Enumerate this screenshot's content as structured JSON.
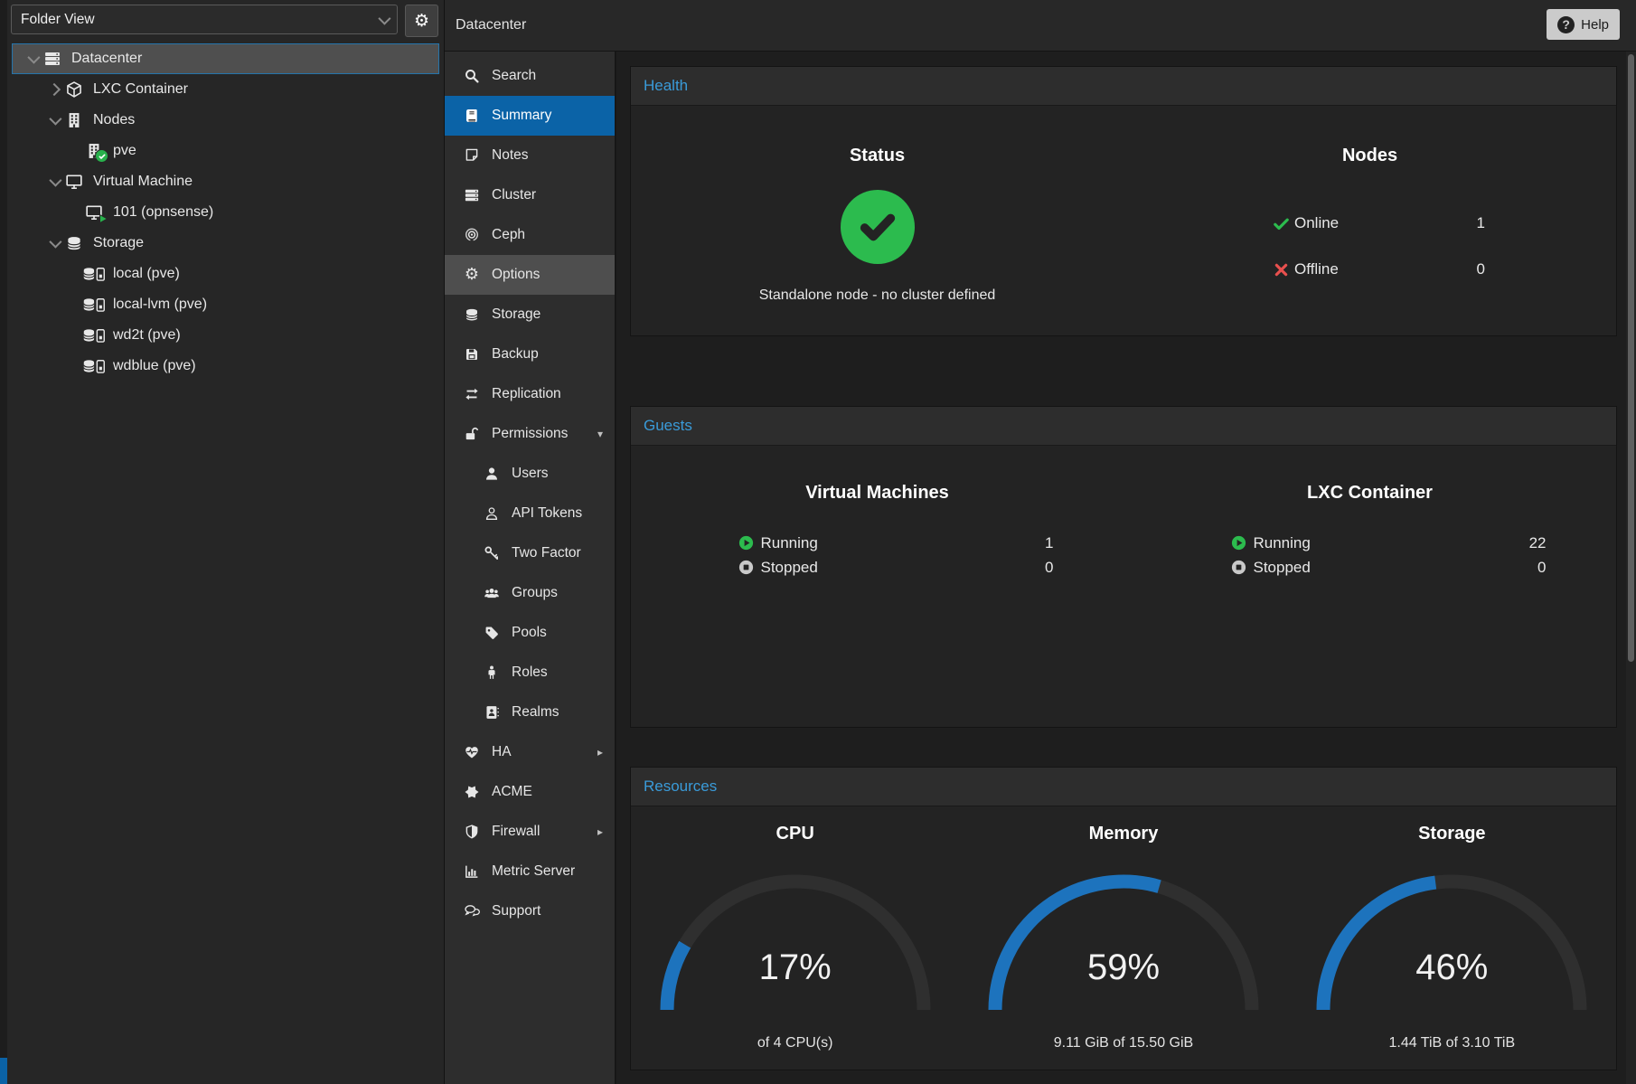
{
  "colors": {
    "selection_blue": "#0b63a7",
    "panel_title_blue": "#3a9bd9",
    "gauge_blue": "#1d73bd",
    "ok_green": "#2cbb4e",
    "error_red": "#e8504e",
    "stopped_gray": "#c9c9c9"
  },
  "left_panel": {
    "view_selector": "Folder View",
    "gear_icon": "gear-icon",
    "tree": [
      {
        "depth": 0,
        "caret": "down",
        "icon": "server-icon",
        "badge": null,
        "label": "Datacenter",
        "selected": true
      },
      {
        "depth": 1,
        "caret": "right",
        "icon": "cube-icon",
        "badge": null,
        "label": "LXC Container",
        "selected": false
      },
      {
        "depth": 1,
        "caret": "down",
        "icon": "building-icon",
        "badge": null,
        "label": "Nodes",
        "selected": false
      },
      {
        "depth": 2,
        "caret": "none",
        "icon": "building-icon",
        "badge": "check",
        "label": "pve",
        "selected": false
      },
      {
        "depth": 1,
        "caret": "down",
        "icon": "monitor-icon",
        "badge": null,
        "label": "Virtual Machine",
        "selected": false
      },
      {
        "depth": 2,
        "caret": "none",
        "icon": "monitor-icon",
        "badge": "play",
        "label": "101 (opnsense)",
        "selected": false
      },
      {
        "depth": 1,
        "caret": "down",
        "icon": "database-icon",
        "badge": null,
        "label": "Storage",
        "selected": false
      },
      {
        "depth": 2,
        "caret": "none",
        "icon": "database-drive-icon",
        "badge": null,
        "label": "local (pve)",
        "selected": false
      },
      {
        "depth": 2,
        "caret": "none",
        "icon": "database-drive-icon",
        "badge": null,
        "label": "local-lvm (pve)",
        "selected": false
      },
      {
        "depth": 2,
        "caret": "none",
        "icon": "database-drive-icon",
        "badge": null,
        "label": "wd2t (pve)",
        "selected": false
      },
      {
        "depth": 2,
        "caret": "none",
        "icon": "database-drive-icon",
        "badge": null,
        "label": "wdblue (pve)",
        "selected": false
      }
    ]
  },
  "top_bar": {
    "breadcrumb": "Datacenter",
    "help_label": "Help",
    "help_icon": "question-circle-icon"
  },
  "menu": {
    "items": [
      {
        "icon": "search-icon",
        "label": "Search",
        "level": 0,
        "state": "normal",
        "arrow": "none"
      },
      {
        "icon": "book-icon",
        "label": "Summary",
        "level": 0,
        "state": "selected",
        "arrow": "none"
      },
      {
        "icon": "note-icon",
        "label": "Notes",
        "level": 0,
        "state": "normal",
        "arrow": "none"
      },
      {
        "icon": "server-icon",
        "label": "Cluster",
        "level": 0,
        "state": "normal",
        "arrow": "none"
      },
      {
        "icon": "ceph-icon",
        "label": "Ceph",
        "level": 0,
        "state": "normal",
        "arrow": "none"
      },
      {
        "icon": "gear-icon",
        "label": "Options",
        "level": 0,
        "state": "hover",
        "arrow": "none"
      },
      {
        "icon": "database-icon",
        "label": "Storage",
        "level": 0,
        "state": "normal",
        "arrow": "none"
      },
      {
        "icon": "floppy-icon",
        "label": "Backup",
        "level": 0,
        "state": "normal",
        "arrow": "none"
      },
      {
        "icon": "exchange-icon",
        "label": "Replication",
        "level": 0,
        "state": "normal",
        "arrow": "none"
      },
      {
        "icon": "lock-open-icon",
        "label": "Permissions",
        "level": 0,
        "state": "normal",
        "arrow": "down"
      },
      {
        "icon": "user-icon",
        "label": "Users",
        "level": 1,
        "state": "normal",
        "arrow": "none"
      },
      {
        "icon": "user-outline-icon",
        "label": "API Tokens",
        "level": 1,
        "state": "normal",
        "arrow": "none"
      },
      {
        "icon": "key-icon",
        "label": "Two Factor",
        "level": 1,
        "state": "normal",
        "arrow": "none"
      },
      {
        "icon": "users-icon",
        "label": "Groups",
        "level": 1,
        "state": "normal",
        "arrow": "none"
      },
      {
        "icon": "tag-icon",
        "label": "Pools",
        "level": 1,
        "state": "normal",
        "arrow": "none"
      },
      {
        "icon": "person-icon",
        "label": "Roles",
        "level": 1,
        "state": "normal",
        "arrow": "none"
      },
      {
        "icon": "address-book-icon",
        "label": "Realms",
        "level": 1,
        "state": "normal",
        "arrow": "none"
      },
      {
        "icon": "heartbeat-icon",
        "label": "HA",
        "level": 0,
        "state": "normal",
        "arrow": "right"
      },
      {
        "icon": "burst-icon",
        "label": "ACME",
        "level": 0,
        "state": "normal",
        "arrow": "none"
      },
      {
        "icon": "shield-icon",
        "label": "Firewall",
        "level": 0,
        "state": "normal",
        "arrow": "right"
      },
      {
        "icon": "chart-icon",
        "label": "Metric Server",
        "level": 0,
        "state": "normal",
        "arrow": "none"
      },
      {
        "icon": "chat-icon",
        "label": "Support",
        "level": 0,
        "state": "normal",
        "arrow": "none"
      }
    ]
  },
  "health": {
    "title": "Health",
    "status_heading": "Status",
    "status_icon": "check-circle-icon",
    "status_message": "Standalone node - no cluster defined",
    "nodes_heading": "Nodes",
    "node_rows": [
      {
        "icon": "check-icon",
        "label": "Online",
        "value": "1"
      },
      {
        "icon": "cross-icon",
        "label": "Offline",
        "value": "0"
      }
    ]
  },
  "guests": {
    "title": "Guests",
    "columns": [
      {
        "heading": "Virtual Machines",
        "rows": [
          {
            "icon": "play-circle-icon",
            "label": "Running",
            "value": "1"
          },
          {
            "icon": "stop-circle-icon",
            "label": "Stopped",
            "value": "0"
          }
        ]
      },
      {
        "heading": "LXC Container",
        "rows": [
          {
            "icon": "play-circle-icon",
            "label": "Running",
            "value": "22"
          },
          {
            "icon": "stop-circle-icon",
            "label": "Stopped",
            "value": "0"
          }
        ]
      }
    ]
  },
  "resources": {
    "title": "Resources",
    "chart_data": [
      {
        "type": "gauge",
        "label": "CPU",
        "percent": 17,
        "percent_text": "17%",
        "detail": "of 4 CPU(s)"
      },
      {
        "type": "gauge",
        "label": "Memory",
        "percent": 59,
        "percent_text": "59%",
        "detail": "9.11 GiB of 15.50 GiB"
      },
      {
        "type": "gauge",
        "label": "Storage",
        "percent": 46,
        "percent_text": "46%",
        "detail": "1.44 TiB of 3.10 TiB"
      }
    ]
  }
}
